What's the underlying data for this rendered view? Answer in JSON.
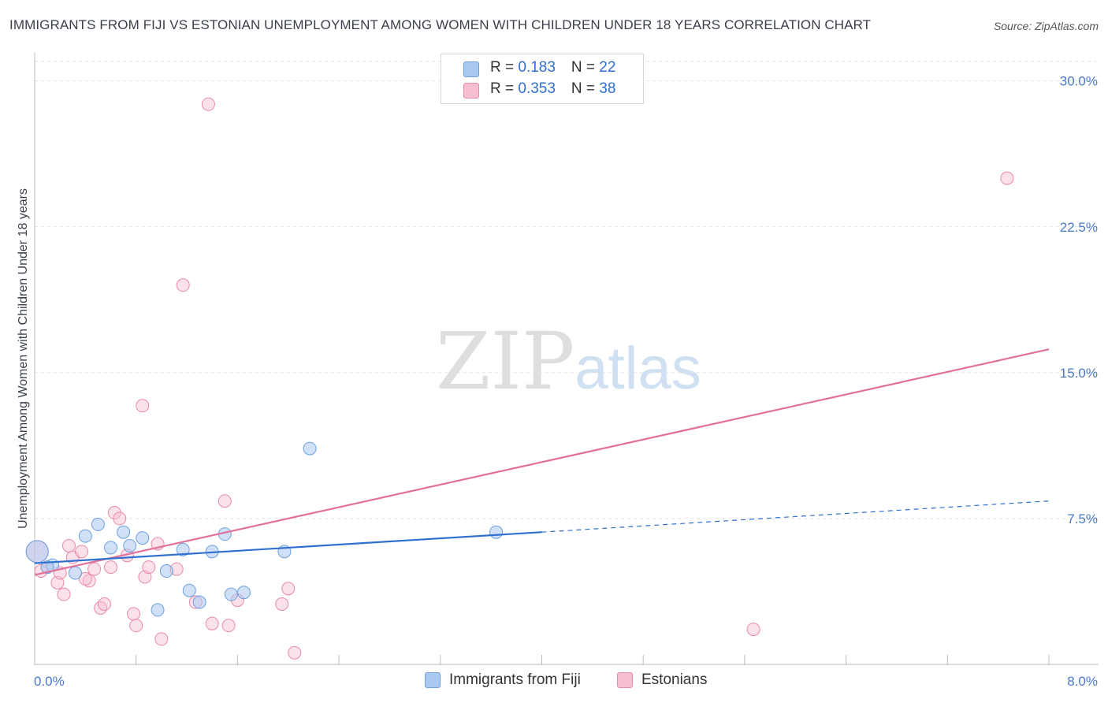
{
  "title": "IMMIGRANTS FROM FIJI VS ESTONIAN UNEMPLOYMENT AMONG WOMEN WITH CHILDREN UNDER 18 YEARS CORRELATION CHART",
  "source": "Source: ZipAtlas.com",
  "watermark": {
    "zip": "ZIP",
    "atlas": "atlas"
  },
  "legend": {
    "rows": [
      {
        "r_label": "R = ",
        "r_value": "0.183",
        "n_label": "N = ",
        "n_value": "22",
        "color": "#aac8f0",
        "border": "#6f9fe0"
      },
      {
        "r_label": "R = ",
        "r_value": "0.353",
        "n_label": "N = ",
        "n_value": "38",
        "color": "#f6bfd0",
        "border": "#e88aa8"
      }
    ]
  },
  "bottom_legend": [
    {
      "label": "Immigrants from Fiji",
      "color": "#aac8f0",
      "border": "#6f9fe0"
    },
    {
      "label": "Estonians",
      "color": "#f6bfd0",
      "border": "#e88aa8"
    }
  ],
  "colors": {
    "fiji_point_fill": "rgba(170,200,240,0.55)",
    "fiji_point_stroke": "#6f9fe0",
    "fiji_line": "#2f6fd0",
    "est_point_fill": "rgba(246,191,208,0.45)",
    "est_point_stroke": "#e88aa8",
    "est_line": "#e2719a"
  },
  "chart_data": {
    "type": "scatter",
    "xlabel": "",
    "ylabel": "Unemployment Among Women with Children Under 18 years",
    "xlim": [
      0,
      8.0
    ],
    "ylim": [
      0,
      31
    ],
    "x_tick_labels": [
      "0.0%",
      "8.0%"
    ],
    "y_ticks": [
      7.5,
      15.0,
      22.5,
      30.0
    ],
    "y_tick_labels": [
      "7.5%",
      "15.0%",
      "22.5%",
      "30.0%"
    ],
    "grid": "horizontal dashed",
    "series": [
      {
        "name": "Immigrants from Fiji",
        "points": [
          [
            0.02,
            5.8
          ],
          [
            0.14,
            5.1
          ],
          [
            0.32,
            4.7
          ],
          [
            0.4,
            6.6
          ],
          [
            0.5,
            7.2
          ],
          [
            0.6,
            6.0
          ],
          [
            0.7,
            6.8
          ],
          [
            0.75,
            6.1
          ],
          [
            0.85,
            6.5
          ],
          [
            0.97,
            2.8
          ],
          [
            1.04,
            4.8
          ],
          [
            1.17,
            5.9
          ],
          [
            1.22,
            3.8
          ],
          [
            1.3,
            3.2
          ],
          [
            1.4,
            5.8
          ],
          [
            1.5,
            6.7
          ],
          [
            1.55,
            3.6
          ],
          [
            1.65,
            3.7
          ],
          [
            1.97,
            5.8
          ],
          [
            2.17,
            11.1
          ],
          [
            3.64,
            6.8
          ],
          [
            0.1,
            5.0
          ]
        ],
        "trend": {
          "x0": 0.0,
          "y0": 5.2,
          "x1": 4.0,
          "y1": 6.8,
          "dashed_to_x": 8.0,
          "dashed_to_y": 8.4
        }
      },
      {
        "name": "Estonians",
        "points": [
          [
            0.02,
            5.8
          ],
          [
            0.05,
            4.8
          ],
          [
            0.1,
            5.0
          ],
          [
            0.18,
            4.2
          ],
          [
            0.23,
            3.6
          ],
          [
            0.27,
            6.1
          ],
          [
            0.3,
            5.5
          ],
          [
            0.37,
            5.8
          ],
          [
            0.43,
            4.3
          ],
          [
            0.47,
            4.9
          ],
          [
            0.52,
            2.9
          ],
          [
            0.55,
            3.1
          ],
          [
            0.6,
            5.0
          ],
          [
            0.63,
            7.8
          ],
          [
            0.67,
            7.5
          ],
          [
            0.73,
            5.6
          ],
          [
            0.78,
            2.6
          ],
          [
            0.8,
            2.0
          ],
          [
            0.85,
            13.3
          ],
          [
            0.87,
            4.5
          ],
          [
            0.9,
            5.0
          ],
          [
            0.97,
            6.2
          ],
          [
            1.0,
            1.3
          ],
          [
            1.12,
            4.9
          ],
          [
            1.17,
            19.5
          ],
          [
            1.27,
            3.2
          ],
          [
            1.37,
            28.8
          ],
          [
            1.4,
            2.1
          ],
          [
            1.5,
            8.4
          ],
          [
            1.53,
            2.0
          ],
          [
            1.6,
            3.3
          ],
          [
            1.95,
            3.1
          ],
          [
            2.0,
            3.9
          ],
          [
            2.05,
            0.6
          ],
          [
            5.67,
            1.8
          ],
          [
            7.67,
            25.0
          ],
          [
            0.2,
            4.7
          ],
          [
            0.4,
            4.4
          ]
        ],
        "trend": {
          "x0": 0.0,
          "y0": 4.6,
          "x1": 8.0,
          "y1": 16.2
        }
      }
    ]
  }
}
